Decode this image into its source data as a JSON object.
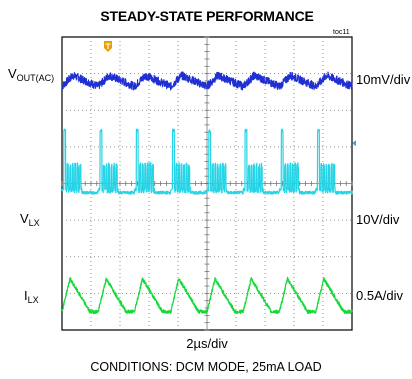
{
  "chart_data": {
    "type": "line",
    "title": "STEADY-STATE PERFORMANCE",
    "plot_id": "toc11",
    "x_axis_label": "2µs/div",
    "conditions": "CONDITIONS: DCM MODE, 25mA LOAD",
    "grid": true,
    "divisions": {
      "x": 10,
      "y": 8
    },
    "series": [
      {
        "name": "VOUT(AC)",
        "name_main": "V",
        "name_sub": "OUT(AC)",
        "scale": "10mV/div",
        "color": "#1f2fd1",
        "shape": "ripple",
        "level_div": 6.8,
        "ripple_div": 0.3,
        "bursts": 8
      },
      {
        "name": "VLX",
        "name_main": "V",
        "name_sub": "LX",
        "scale": "10V/div",
        "color": "#25d4e6",
        "shape": "switching",
        "level_div": 3.75,
        "pulse_div": 1.7,
        "bursts": 8
      },
      {
        "name": "ILX",
        "name_main": "I",
        "name_sub": "LX",
        "scale": "0.5A/div",
        "color": "#17d83a",
        "shape": "sawtooth",
        "level_div": 0.5,
        "peak_div": 0.9,
        "bursts": 8
      }
    ],
    "markers": {
      "trigger_color": "#e8a000",
      "ground_marker_color": "#25b0d6"
    }
  }
}
